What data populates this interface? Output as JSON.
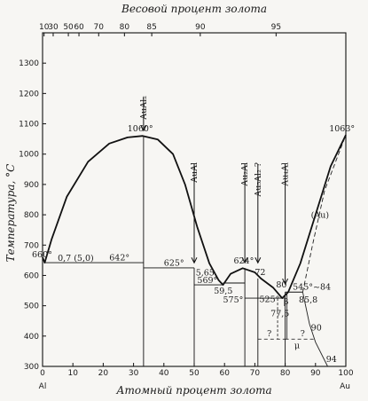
{
  "top_axis": {
    "title": "Весовой процент золота",
    "ticks": [
      "10",
      "30",
      "50",
      "60",
      "70",
      "80",
      "85",
      "90",
      "95"
    ],
    "tick_at_at_pct": [
      0.5,
      3.5,
      8.5,
      12,
      18.5,
      27,
      36,
      52,
      77
    ]
  },
  "bottom_axis": {
    "title": "Атомный процент золота",
    "ticks": [
      0,
      10,
      20,
      30,
      40,
      50,
      60,
      70,
      80,
      90,
      100
    ],
    "left_end_label": "Al",
    "right_end_label": "Au",
    "range": [
      0,
      100
    ]
  },
  "left_axis": {
    "title": "Температура, °С",
    "ticks": [
      300,
      400,
      500,
      600,
      700,
      800,
      900,
      1000,
      1100,
      1200,
      1300
    ],
    "range": [
      300,
      1400
    ]
  },
  "chart_data": {
    "type": "phase-diagram",
    "liquidus": [
      {
        "x": 0,
        "y": 660
      },
      {
        "x": 0.7,
        "y": 642
      },
      {
        "x": 3,
        "y": 720
      },
      {
        "x": 8,
        "y": 860
      },
      {
        "x": 15,
        "y": 975
      },
      {
        "x": 22,
        "y": 1035
      },
      {
        "x": 28,
        "y": 1055
      },
      {
        "x": 33,
        "y": 1060
      },
      {
        "x": 38,
        "y": 1048
      },
      {
        "x": 43,
        "y": 1000
      },
      {
        "x": 47,
        "y": 900
      },
      {
        "x": 51,
        "y": 760
      },
      {
        "x": 55,
        "y": 640
      },
      {
        "x": 58,
        "y": 585
      },
      {
        "x": 59.5,
        "y": 569
      },
      {
        "x": 62,
        "y": 605
      },
      {
        "x": 66,
        "y": 624
      },
      {
        "x": 70,
        "y": 610
      },
      {
        "x": 72,
        "y": 590
      },
      {
        "x": 76,
        "y": 560
      },
      {
        "x": 79,
        "y": 525
      },
      {
        "x": 81,
        "y": 545
      },
      {
        "x": 85,
        "y": 640
      },
      {
        "x": 90,
        "y": 800
      },
      {
        "x": 95,
        "y": 960
      },
      {
        "x": 100,
        "y": 1063
      }
    ],
    "solidus_dashed": [
      {
        "x": 85.8,
        "y": 545
      },
      {
        "x": 89,
        "y": 700
      },
      {
        "x": 93,
        "y": 880
      },
      {
        "x": 100,
        "y": 1063
      }
    ],
    "solvus_dashed": [
      {
        "x": 85.8,
        "y": 545
      },
      {
        "x": 88,
        "y": 440
      },
      {
        "x": 90,
        "y": 380
      },
      {
        "x": 94,
        "y": 300
      }
    ],
    "compound_lines": [
      {
        "x": 33.3,
        "y_top": 1060,
        "label": "AuAl2"
      },
      {
        "x": 50,
        "y_top": 625,
        "label": "AuAl"
      },
      {
        "x": 66.7,
        "y_top": 624,
        "label": "Au2Al"
      },
      {
        "x": 71,
        "y_top": 590,
        "label": "Au5Al2 ?"
      },
      {
        "x": 80,
        "y_top": 545,
        "label": "Au4Al"
      }
    ],
    "isotherms": [
      {
        "x1": 0.7,
        "x2": 33.3,
        "y": 642
      },
      {
        "x1": 33.3,
        "x2": 50,
        "y": 625
      },
      {
        "x1": 50,
        "x2": 59.5,
        "y": 569
      },
      {
        "x1": 59.5,
        "x2": 66.7,
        "y": 575
      },
      {
        "x1": 66.7,
        "x2": 80,
        "y": 525
      },
      {
        "x1": 80,
        "x2": 85.8,
        "y": 545
      }
    ],
    "dashed_isotherms": [
      {
        "x1": 71,
        "x2": 80,
        "y": 390
      },
      {
        "x1": 80,
        "x2": 90,
        "y": 390
      }
    ],
    "arrows": [
      {
        "x": 33.3,
        "label": "AuAl₂"
      },
      {
        "x": 50,
        "label": "AuAl"
      },
      {
        "x": 66.7,
        "label": "Au₂Al"
      },
      {
        "x": 71,
        "label": "Au₅Al₂ ?"
      },
      {
        "x": 80,
        "label": "Au₄Al"
      }
    ],
    "annotations": [
      {
        "text": "660°",
        "x": -3.5,
        "y": 660
      },
      {
        "text": "0,7 (5,0)",
        "x": 5,
        "y": 648
      },
      {
        "text": "642°",
        "x": 22,
        "y": 650
      },
      {
        "text": "1060°",
        "x": 28,
        "y": 1075
      },
      {
        "text": "625°",
        "x": 40,
        "y": 632
      },
      {
        "text": "5,65",
        "x": 50.5,
        "y": 600
      },
      {
        "text": "569°",
        "x": 51,
        "y": 575
      },
      {
        "text": "59,5",
        "x": 56.5,
        "y": 540
      },
      {
        "text": "624°",
        "x": 63,
        "y": 640
      },
      {
        "text": "575°",
        "x": 59.5,
        "y": 510
      },
      {
        "text": "72",
        "x": 70,
        "y": 602
      },
      {
        "text": "525°",
        "x": 71.5,
        "y": 512
      },
      {
        "text": "80",
        "x": 77,
        "y": 560
      },
      {
        "text": "77,5",
        "x": 75.2,
        "y": 465
      },
      {
        "text": "β",
        "x": 79.5,
        "y": 505
      },
      {
        "text": "545°~84",
        "x": 82.5,
        "y": 553
      },
      {
        "text": "85,8",
        "x": 84.5,
        "y": 510
      },
      {
        "text": "90",
        "x": 88.5,
        "y": 418
      },
      {
        "text": "?",
        "x": 74,
        "y": 400
      },
      {
        "text": "?",
        "x": 85,
        "y": 400
      },
      {
        "text": "μ",
        "x": 83,
        "y": 360
      },
      {
        "text": "94",
        "x": 93.5,
        "y": 315
      },
      {
        "text": "(Au)",
        "x": 88.5,
        "y": 790
      },
      {
        "text": "1063°",
        "x": 94.5,
        "y": 1075
      }
    ]
  }
}
